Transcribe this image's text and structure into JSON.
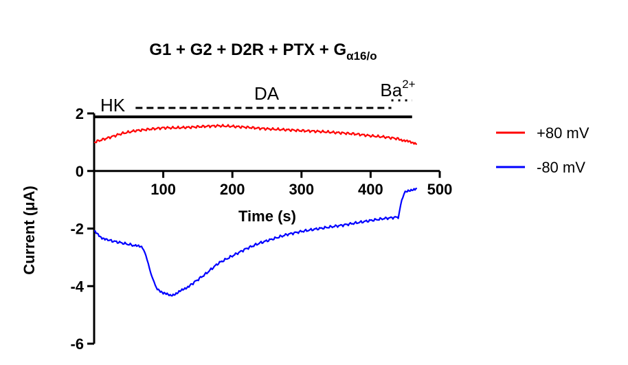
{
  "chart_data": {
    "type": "line",
    "title": {
      "main": "G1 + G2 + D2R + PTX + G",
      "subscript": "α16/o"
    },
    "xlabel": "Time (s)",
    "ylabel": "Current  (μA)",
    "xlim": [
      0,
      500
    ],
    "ylim": [
      -6,
      2
    ],
    "x_ticks": [
      100,
      200,
      300,
      400,
      500
    ],
    "y_ticks": [
      2,
      0,
      -2,
      -4,
      -6
    ],
    "grid": false,
    "legend_position": "right",
    "annotations": {
      "hk": {
        "label": "HK",
        "x_start": 0,
        "x_end": 460,
        "style": "solid"
      },
      "da": {
        "label": "DA",
        "x_start": 60,
        "x_end": 430,
        "style": "dashed"
      },
      "ba": {
        "label": "Ba",
        "superscript": "2+",
        "x_start": 430,
        "x_end": 460,
        "style": "dotted"
      }
    },
    "series": [
      {
        "name": "+80 mV",
        "color": "#ff0000",
        "points": [
          [
            0,
            1.0
          ],
          [
            20,
            1.15
          ],
          [
            40,
            1.3
          ],
          [
            60,
            1.4
          ],
          [
            80,
            1.45
          ],
          [
            100,
            1.5
          ],
          [
            120,
            1.5
          ],
          [
            140,
            1.52
          ],
          [
            160,
            1.55
          ],
          [
            180,
            1.57
          ],
          [
            200,
            1.55
          ],
          [
            220,
            1.52
          ],
          [
            240,
            1.48
          ],
          [
            260,
            1.45
          ],
          [
            280,
            1.43
          ],
          [
            300,
            1.4
          ],
          [
            320,
            1.38
          ],
          [
            340,
            1.35
          ],
          [
            360,
            1.32
          ],
          [
            380,
            1.28
          ],
          [
            400,
            1.22
          ],
          [
            420,
            1.18
          ],
          [
            440,
            1.12
          ],
          [
            450,
            1.05
          ],
          [
            460,
            0.98
          ],
          [
            467,
            0.93
          ]
        ]
      },
      {
        "name": "-80 mV",
        "color": "#0000ff",
        "points": [
          [
            0,
            -2.1
          ],
          [
            10,
            -2.3
          ],
          [
            20,
            -2.4
          ],
          [
            40,
            -2.5
          ],
          [
            60,
            -2.6
          ],
          [
            70,
            -2.65
          ],
          [
            75,
            -2.9
          ],
          [
            80,
            -3.4
          ],
          [
            85,
            -3.8
          ],
          [
            90,
            -4.05
          ],
          [
            100,
            -4.25
          ],
          [
            110,
            -4.32
          ],
          [
            120,
            -4.25
          ],
          [
            130,
            -4.1
          ],
          [
            140,
            -3.95
          ],
          [
            160,
            -3.6
          ],
          [
            180,
            -3.2
          ],
          [
            200,
            -2.95
          ],
          [
            220,
            -2.7
          ],
          [
            240,
            -2.5
          ],
          [
            260,
            -2.35
          ],
          [
            280,
            -2.2
          ],
          [
            300,
            -2.1
          ],
          [
            320,
            -2.02
          ],
          [
            340,
            -1.95
          ],
          [
            360,
            -1.88
          ],
          [
            380,
            -1.8
          ],
          [
            400,
            -1.72
          ],
          [
            420,
            -1.65
          ],
          [
            440,
            -1.6
          ],
          [
            445,
            -1.0
          ],
          [
            450,
            -0.75
          ],
          [
            460,
            -0.65
          ],
          [
            467,
            -0.6
          ]
        ]
      }
    ]
  }
}
